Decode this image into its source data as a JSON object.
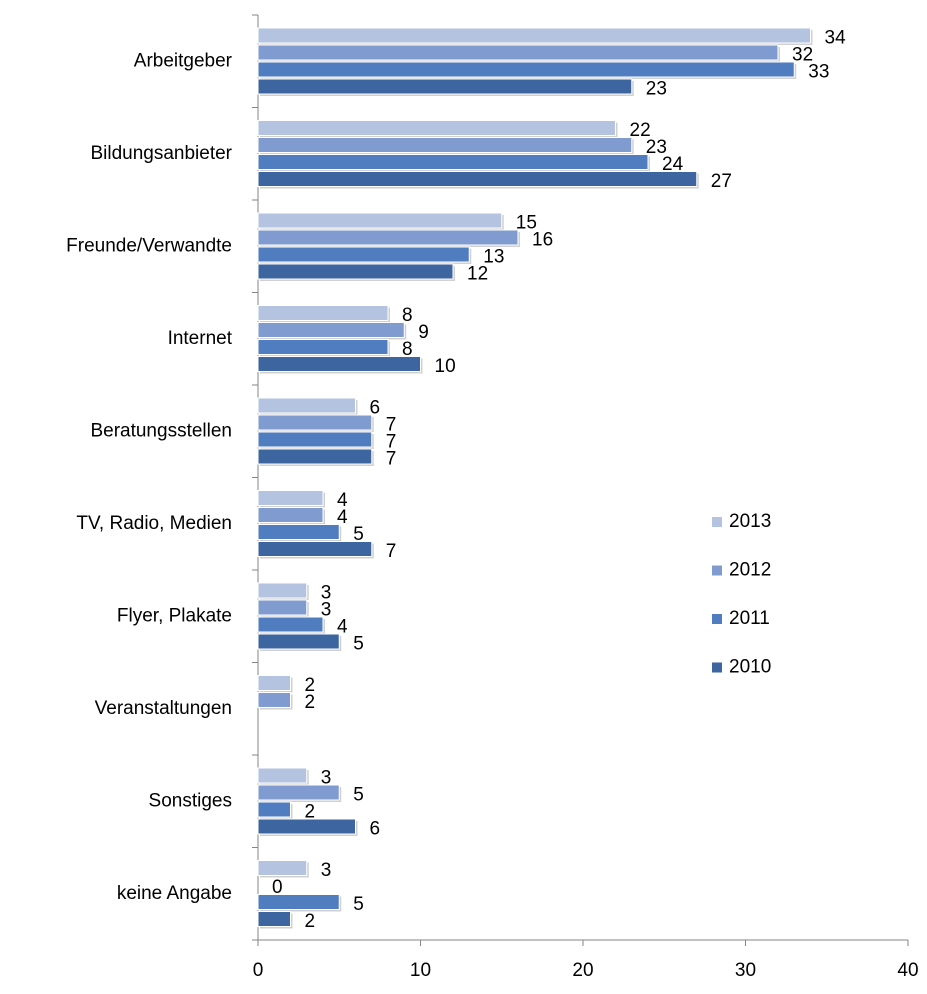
{
  "chart_data": {
    "type": "bar",
    "orientation": "horizontal",
    "categories": [
      "Arbeitgeber",
      "Bildungsanbieter",
      "Freunde/Verwandte",
      "Internet",
      "Beratungsstellen",
      "TV, Radio, Medien",
      "Flyer, Plakate",
      "Veranstaltungen",
      "Sonstiges",
      "keine Angabe"
    ],
    "series": [
      {
        "name": "2013",
        "color": "#b3c3e0",
        "values": [
          34,
          22,
          15,
          8,
          6,
          4,
          3,
          2,
          3,
          3
        ]
      },
      {
        "name": "2012",
        "color": "#7f9bcf",
        "values": [
          32,
          23,
          16,
          9,
          7,
          4,
          3,
          2,
          5,
          0
        ]
      },
      {
        "name": "2011",
        "color": "#4f7dc0",
        "values": [
          33,
          24,
          13,
          8,
          7,
          5,
          4,
          null,
          2,
          5
        ]
      },
      {
        "name": "2010",
        "color": "#3d65a0",
        "values": [
          23,
          27,
          12,
          10,
          7,
          7,
          5,
          null,
          6,
          2
        ]
      }
    ],
    "xlim": [
      0,
      40
    ],
    "xticks": [
      0,
      10,
      20,
      30,
      40
    ],
    "legend": "right"
  }
}
